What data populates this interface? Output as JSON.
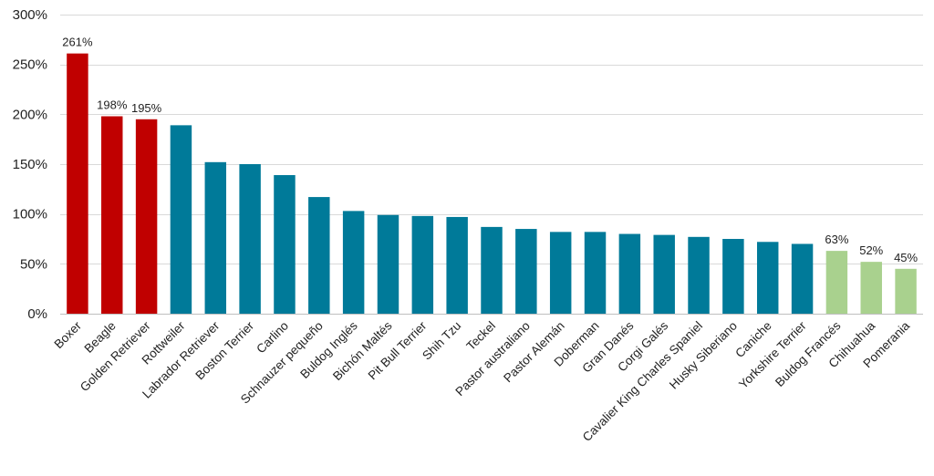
{
  "chart_data": {
    "type": "bar",
    "title": "",
    "xlabel": "",
    "ylabel": "",
    "ylim": [
      0,
      300
    ],
    "yticks": [
      0,
      50,
      100,
      150,
      200,
      250,
      300
    ],
    "ytick_labels": [
      "0%",
      "50%",
      "100%",
      "150%",
      "200%",
      "250%",
      "300%"
    ],
    "grid": true,
    "categories": [
      "Boxer",
      "Beagle",
      "Golden Retriever",
      "Rottweiler",
      "Labrador Retriever",
      "Boston Terrier",
      "Carlino",
      "Schnauzer pequeño",
      "Buldog Inglés",
      "Bichón Maltés",
      "Pit Bull Terrier",
      "Shih Tzu",
      "Teckel",
      "Pastor australiano",
      "Pastor Alemán",
      "Doberman",
      "Gran Danés",
      "Corgi Galés",
      "Cavalier King Charles Spaniel",
      "Husky Siberiano",
      "Caniche",
      "Yorkshire Terrier",
      "Buldog Francés",
      "Chihuahua",
      "Pomerania"
    ],
    "values": [
      261,
      198,
      195,
      189,
      152,
      150,
      139,
      117,
      103,
      99,
      98,
      97,
      87,
      85,
      82,
      82,
      80,
      79,
      77,
      75,
      72,
      70,
      63,
      52,
      45
    ],
    "bar_groups": [
      "high",
      "high",
      "high",
      "mid",
      "mid",
      "mid",
      "mid",
      "mid",
      "mid",
      "mid",
      "mid",
      "mid",
      "mid",
      "mid",
      "mid",
      "mid",
      "mid",
      "mid",
      "mid",
      "mid",
      "mid",
      "mid",
      "low",
      "low",
      "low"
    ],
    "colors": {
      "high": "#c00000",
      "mid": "#007a99",
      "low": "#a9d18e",
      "grid": "#d9d9d9",
      "axis": "#bfbfbf"
    },
    "data_labels": [
      "261%",
      "198%",
      "195%",
      "",
      "",
      "",
      "",
      "",
      "",
      "",
      "",
      "",
      "",
      "",
      "",
      "",
      "",
      "",
      "",
      "",
      "",
      "",
      "63%",
      "52%",
      "45%"
    ]
  }
}
